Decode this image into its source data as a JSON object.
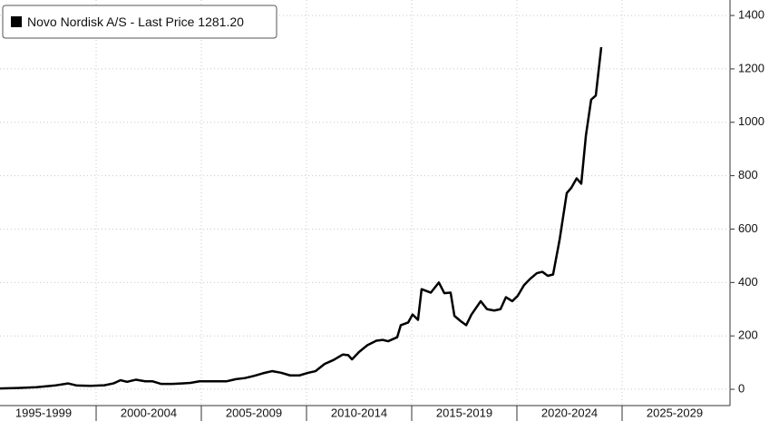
{
  "chart_data": {
    "type": "line",
    "legend": {
      "name": "Novo Nordisk A/S - Last Price",
      "value_label": "1281.20",
      "corner": "top-left"
    },
    "x": [
      1995.43,
      1996.29,
      1997.16,
      1998.02,
      1998.66,
      1999.09,
      1999.74,
      2000.39,
      2000.82,
      2001.16,
      2001.47,
      2001.9,
      2002.33,
      2002.67,
      2003.1,
      2003.62,
      2004.05,
      2004.48,
      2004.91,
      2005.78,
      2006.21,
      2006.64,
      2007.07,
      2007.5,
      2007.93,
      2008.36,
      2008.79,
      2009.22,
      2009.66,
      2010.09,
      2010.43,
      2010.86,
      2011.29,
      2011.72,
      2011.98,
      2012.16,
      2012.5,
      2012.89,
      2013.32,
      2013.62,
      2013.88,
      2014.31,
      2014.48,
      2014.83,
      2015.04,
      2015.3,
      2015.47,
      2015.91,
      2016.29,
      2016.55,
      2016.85,
      2017.03,
      2017.33,
      2017.59,
      2017.84,
      2018.28,
      2018.58,
      2018.92,
      2019.22,
      2019.48,
      2019.78,
      2020.04,
      2020.34,
      2020.65,
      2020.95,
      2021.21,
      2021.47,
      2021.72,
      2022.03,
      2022.37,
      2022.59,
      2022.84,
      2023.06,
      2023.28,
      2023.53,
      2023.75,
      2024.01
    ],
    "series": [
      {
        "name": "Novo Nordisk A/S - Last Price",
        "color": "#000000",
        "values": [
          3,
          5,
          8,
          14,
          22,
          14,
          13,
          15,
          22,
          34,
          28,
          36,
          30,
          30,
          20,
          20,
          22,
          24,
          30,
          30,
          30,
          38,
          42,
          50,
          60,
          68,
          62,
          52,
          52,
          62,
          68,
          95,
          110,
          130,
          128,
          112,
          140,
          165,
          182,
          185,
          180,
          195,
          240,
          250,
          280,
          260,
          375,
          362,
          400,
          360,
          362,
          275,
          255,
          240,
          280,
          330,
          300,
          295,
          300,
          345,
          330,
          350,
          390,
          415,
          435,
          440,
          425,
          430,
          560,
          735,
          755,
          790,
          770,
          950,
          1085,
          1100,
          1281.2
        ]
      }
    ],
    "xlim": [
      1995.43,
      2030.13
    ],
    "xticks": [
      {
        "value": 1995,
        "label": "1995-1999"
      },
      {
        "value": 2000,
        "label": "2000-2004"
      },
      {
        "value": 2005,
        "label": "2005-2009"
      },
      {
        "value": 2010,
        "label": "2010-2014"
      },
      {
        "value": 2015,
        "label": "2015-2019"
      },
      {
        "value": 2020,
        "label": "2020-2024"
      },
      {
        "value": 2025,
        "label": "2025-2029"
      }
    ],
    "ylim": [
      -61,
      1458
    ],
    "yticks": [
      0,
      200,
      400,
      600,
      800,
      1000,
      1200,
      1400
    ],
    "grid": true,
    "y_axis_side": "right"
  }
}
